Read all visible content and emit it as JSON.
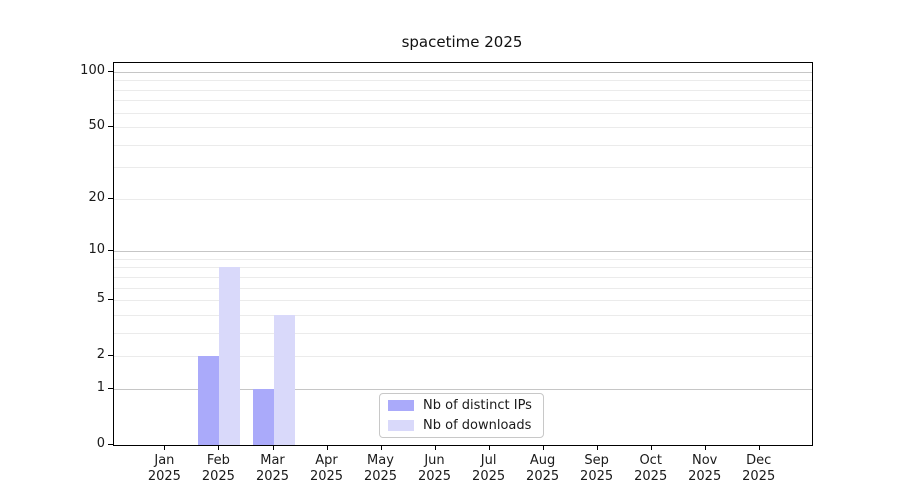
{
  "title": "spacetime 2025",
  "colors": {
    "distinct_ips": "#aaaafa",
    "downloads": "#d9d9fa",
    "grid_major": "#c6c6c6",
    "grid_minor": "#ebebeb",
    "spine": "#000000",
    "text": "#1a1a1a",
    "background": "#ffffff"
  },
  "legend": {
    "labels": [
      "Nb of distinct IPs",
      "Nb of downloads"
    ]
  },
  "chart_data": {
    "type": "bar",
    "title": "spacetime 2025",
    "categories": [
      "Jan",
      "Feb",
      "Mar",
      "Apr",
      "May",
      "Jun",
      "Jul",
      "Aug",
      "Sep",
      "Oct",
      "Nov",
      "Dec"
    ],
    "category_year": "2025",
    "series": [
      {
        "name": "Nb of distinct IPs",
        "color": "#aaaafa",
        "values": [
          0,
          2,
          1,
          0,
          0,
          0,
          0,
          0,
          0,
          0,
          0,
          0
        ]
      },
      {
        "name": "Nb of downloads",
        "color": "#d9d9fa",
        "values": [
          0,
          8,
          4,
          0,
          0,
          0,
          0,
          0,
          0,
          0,
          0,
          0
        ]
      }
    ],
    "xlabel": "",
    "ylabel": "",
    "y_axis": {
      "scale": "log1p",
      "ticks": [
        0,
        1,
        2,
        5,
        10,
        20,
        50,
        100
      ],
      "major_gridlines": [
        1,
        10,
        100
      ],
      "minor_gridlines": [
        2,
        3,
        4,
        5,
        6,
        7,
        8,
        9,
        20,
        30,
        40,
        50,
        60,
        70,
        80,
        90
      ],
      "ylim": [
        0,
        112
      ]
    },
    "grid": true,
    "legend_position": "lower center"
  }
}
